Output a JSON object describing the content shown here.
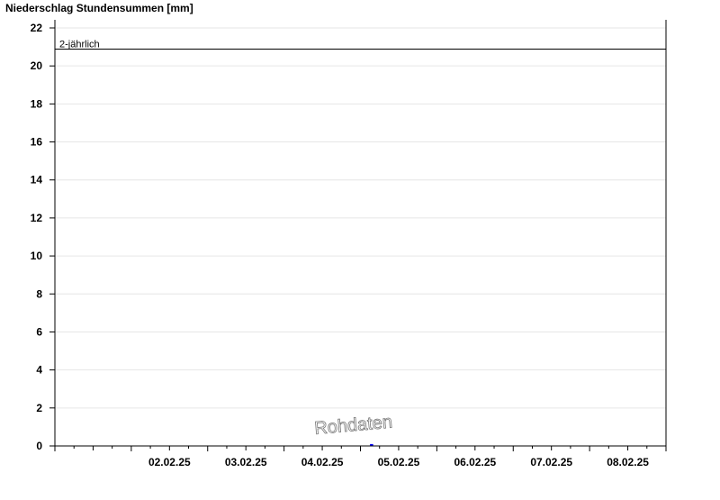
{
  "chart_data": {
    "type": "bar",
    "title": "Niederschlag Stundensummen [mm]",
    "xlabel": "",
    "ylabel": "",
    "x_range": [
      "01.02.25 00:00",
      "09.02.25 00:00"
    ],
    "ylim": [
      0,
      22
    ],
    "yticks": [
      0,
      2,
      4,
      6,
      8,
      10,
      12,
      14,
      16,
      18,
      20,
      22
    ],
    "xtick_labels": [
      "02.02.25",
      "03.02.25",
      "04.02.25",
      "05.02.25",
      "06.02.25",
      "07.02.25",
      "08.02.25"
    ],
    "grid": true,
    "series": [
      {
        "x": [
          "05.02.25 03:00"
        ],
        "values": [
          0.1
        ],
        "color": "#0000ff"
      }
    ],
    "threshold": {
      "label": "2-jährlich",
      "value": 20.9,
      "color": "#000000"
    },
    "watermark": "Rohdaten"
  }
}
